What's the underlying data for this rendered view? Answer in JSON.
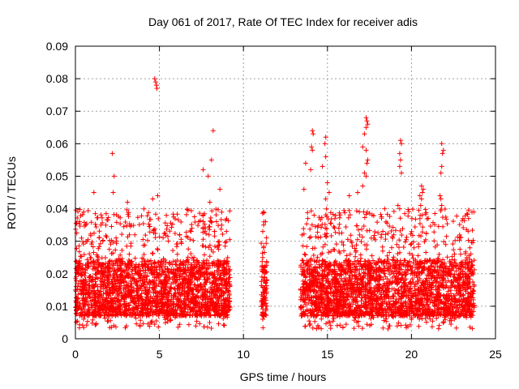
{
  "chart_data": {
    "type": "scatter",
    "title": "Day 061 of 2017, Rate Of TEC Index for receiver adis",
    "xlabel": "GPS time / hours",
    "ylabel": "ROTI / TECUs",
    "xlim": [
      0,
      25
    ],
    "ylim": [
      0,
      0.09
    ],
    "xticks": [
      0,
      5,
      10,
      15,
      20,
      25
    ],
    "xtick_labels": [
      "0",
      "5",
      "10",
      "15",
      "20",
      "25"
    ],
    "yticks": [
      0,
      0.01,
      0.02,
      0.03,
      0.04,
      0.05,
      0.06,
      0.07,
      0.08,
      0.09
    ],
    "ytick_labels": [
      "0",
      "0.01",
      "0.02",
      "0.03",
      "0.04",
      "0.05",
      "0.06",
      "0.07",
      "0.08",
      "0.09"
    ],
    "grid": true,
    "marker": "+",
    "color": "#ff0000",
    "series": [
      {
        "coverage_segments": [
          [
            0.0,
            9.2
          ],
          [
            11.05,
            11.4
          ],
          [
            13.4,
            23.75
          ]
        ],
        "notable_points": [
          {
            "x": 4.72,
            "y": 0.08
          },
          {
            "x": 4.78,
            "y": 0.079
          },
          {
            "x": 4.82,
            "y": 0.078
          },
          {
            "x": 4.85,
            "y": 0.077
          },
          {
            "x": 4.9,
            "y": 0.044
          },
          {
            "x": 2.2,
            "y": 0.057
          },
          {
            "x": 2.3,
            "y": 0.05
          },
          {
            "x": 2.25,
            "y": 0.045
          },
          {
            "x": 8.2,
            "y": 0.064
          },
          {
            "x": 8.1,
            "y": 0.055
          },
          {
            "x": 7.6,
            "y": 0.052
          },
          {
            "x": 7.9,
            "y": 0.05
          },
          {
            "x": 8.6,
            "y": 0.046
          },
          {
            "x": 8.0,
            "y": 0.042
          },
          {
            "x": 1.1,
            "y": 0.045
          },
          {
            "x": 3.1,
            "y": 0.042
          },
          {
            "x": 4.6,
            "y": 0.043
          },
          {
            "x": 11.2,
            "y": 0.039
          },
          {
            "x": 11.2,
            "y": 0.035
          },
          {
            "x": 11.15,
            "y": 0.033
          },
          {
            "x": 11.2,
            "y": 0.028
          },
          {
            "x": 11.15,
            "y": 0.025
          },
          {
            "x": 11.2,
            "y": 0.022
          },
          {
            "x": 11.1,
            "y": 0.019
          },
          {
            "x": 11.15,
            "y": 0.008
          },
          {
            "x": 11.2,
            "y": 0.007
          },
          {
            "x": 11.15,
            "y": 0.006
          },
          {
            "x": 13.7,
            "y": 0.054
          },
          {
            "x": 14.0,
            "y": 0.052
          },
          {
            "x": 13.6,
            "y": 0.046
          },
          {
            "x": 14.1,
            "y": 0.064
          },
          {
            "x": 14.15,
            "y": 0.063
          },
          {
            "x": 14.05,
            "y": 0.059
          },
          {
            "x": 14.1,
            "y": 0.058
          },
          {
            "x": 14.9,
            "y": 0.062
          },
          {
            "x": 14.85,
            "y": 0.06
          },
          {
            "x": 14.9,
            "y": 0.056
          },
          {
            "x": 14.7,
            "y": 0.053
          },
          {
            "x": 15.0,
            "y": 0.048
          },
          {
            "x": 15.1,
            "y": 0.045
          },
          {
            "x": 14.9,
            "y": 0.043
          },
          {
            "x": 17.3,
            "y": 0.068
          },
          {
            "x": 17.35,
            "y": 0.067
          },
          {
            "x": 17.4,
            "y": 0.066
          },
          {
            "x": 17.3,
            "y": 0.065
          },
          {
            "x": 17.2,
            "y": 0.063
          },
          {
            "x": 17.1,
            "y": 0.059
          },
          {
            "x": 17.3,
            "y": 0.058
          },
          {
            "x": 17.4,
            "y": 0.055
          },
          {
            "x": 17.35,
            "y": 0.054
          },
          {
            "x": 17.2,
            "y": 0.051
          },
          {
            "x": 17.3,
            "y": 0.05
          },
          {
            "x": 17.1,
            "y": 0.047
          },
          {
            "x": 16.8,
            "y": 0.045
          },
          {
            "x": 16.3,
            "y": 0.044
          },
          {
            "x": 19.35,
            "y": 0.061
          },
          {
            "x": 19.4,
            "y": 0.06
          },
          {
            "x": 19.3,
            "y": 0.057
          },
          {
            "x": 19.35,
            "y": 0.055
          },
          {
            "x": 19.3,
            "y": 0.053
          },
          {
            "x": 19.4,
            "y": 0.051
          },
          {
            "x": 19.2,
            "y": 0.041
          },
          {
            "x": 19.3,
            "y": 0.04
          },
          {
            "x": 20.6,
            "y": 0.047
          },
          {
            "x": 20.7,
            "y": 0.046
          },
          {
            "x": 20.65,
            "y": 0.045
          },
          {
            "x": 20.5,
            "y": 0.044
          },
          {
            "x": 20.6,
            "y": 0.043
          },
          {
            "x": 20.55,
            "y": 0.041
          },
          {
            "x": 21.8,
            "y": 0.06
          },
          {
            "x": 21.9,
            "y": 0.058
          },
          {
            "x": 21.85,
            "y": 0.057
          },
          {
            "x": 21.8,
            "y": 0.053
          },
          {
            "x": 21.75,
            "y": 0.051
          },
          {
            "x": 21.7,
            "y": 0.044
          },
          {
            "x": 21.75,
            "y": 0.043
          },
          {
            "x": 21.8,
            "y": 0.041
          },
          {
            "x": 23.6,
            "y": 0.039
          },
          {
            "x": 23.4,
            "y": 0.037
          }
        ],
        "dense_band": {
          "y_min": 0.003,
          "y_typical_low": 0.007,
          "y_typical_high": 0.03,
          "y_max": 0.04
        }
      }
    ]
  }
}
